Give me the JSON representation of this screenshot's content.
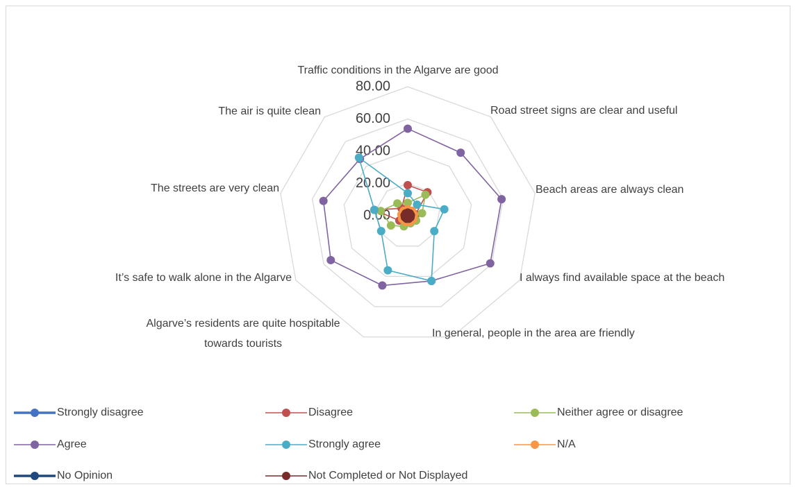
{
  "chart_data": {
    "type": "radar",
    "categories": [
      "Traffic conditions in the Algarve are good",
      "Road street signs are clear and useful",
      "Beach areas are always clean",
      "I always find available space at the beach",
      "In general, people in the area are friendly",
      "Algarve’s residents are quite hospitable towards tourists",
      "It’s safe to walk alone in the Algarve",
      "The streets are very clean",
      "The air is quite clean"
    ],
    "ylim": [
      0,
      80
    ],
    "yticks": [
      {
        "value": 0,
        "label": "0.00"
      },
      {
        "value": 20,
        "label": "20.00"
      },
      {
        "value": 40,
        "label": "40.00"
      },
      {
        "value": 60,
        "label": "60.00"
      },
      {
        "value": 80,
        "label": "80.00"
      }
    ],
    "grid": true,
    "legend": "bottom",
    "series": [
      {
        "name": "Strongly disagree",
        "color": "#4472c4",
        "values": [
          3,
          4,
          3,
          2,
          2,
          2,
          2,
          3,
          3
        ]
      },
      {
        "name": "Disagree",
        "color": "#c0504d",
        "values": [
          19,
          19,
          5,
          3,
          3,
          3,
          6,
          21,
          6
        ]
      },
      {
        "name": "Neither agree or disagree",
        "color": "#9bbb59",
        "values": [
          8,
          17,
          9,
          6,
          5,
          7,
          12,
          17,
          10
        ]
      },
      {
        "name": "Agree",
        "color": "#8064a2",
        "values": [
          54,
          51,
          59,
          59,
          43,
          46,
          55,
          53,
          46
        ]
      },
      {
        "name": "Strongly agree",
        "color": "#4bacc6",
        "values": [
          14,
          9,
          23,
          19,
          43,
          36,
          19,
          21,
          47
        ]
      },
      {
        "name": "N/A",
        "color": "#f79646",
        "values": [
          4,
          4,
          4,
          4,
          4,
          4,
          4,
          4,
          4
        ]
      },
      {
        "name": "No Opinion",
        "color": "#1f497d",
        "values": [
          1,
          1,
          1,
          1,
          1,
          1,
          1,
          1,
          1
        ]
      },
      {
        "name": "Not Completed or Not Displayed",
        "color": "#772c2a",
        "values": [
          2,
          2,
          2,
          2,
          2,
          2,
          2,
          2,
          2
        ]
      }
    ]
  }
}
